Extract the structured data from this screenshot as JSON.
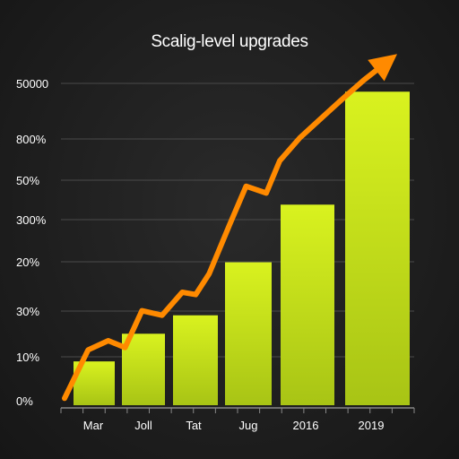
{
  "chart_data": {
    "type": "bar",
    "title": "Scalig-level upgrades",
    "xlabel": "",
    "ylabel": "",
    "categories": [
      "Mar",
      "Joll",
      "Tat",
      "Jug",
      "2016",
      "2019"
    ],
    "y_tick_labels": [
      "0%",
      "10%",
      "30%",
      "20%",
      "300%",
      "50%",
      "800%",
      "50000"
    ],
    "grid": true,
    "legend": "none",
    "ylim": [
      0,
      7
    ],
    "series": [
      {
        "type": "bar",
        "values": [
          0.95,
          1.55,
          1.95,
          3.1,
          4.35,
          6.8
        ],
        "color": "#c8e61c"
      },
      {
        "type": "line",
        "x": [
          0,
          0.7,
          1.3,
          1.8,
          2.3,
          2.9,
          3.5,
          3.9,
          4.3,
          4.9,
          5.4,
          6.0,
          6.4,
          7.0,
          7.6,
          8.2,
          8.9,
          9.6
        ],
        "values": [
          0.15,
          1.2,
          1.4,
          1.25,
          2.05,
          1.95,
          2.45,
          2.4,
          2.85,
          3.9,
          4.75,
          4.6,
          5.3,
          5.8,
          6.2,
          6.6,
          7.05,
          7.45
        ],
        "color": "#ff8a00",
        "arrowhead": true
      }
    ],
    "colors": {
      "bar": "#c8e61c",
      "line": "#ff8a00",
      "grid": "#4a4a4a",
      "axis": "#888888",
      "text": "#ffffff"
    }
  }
}
